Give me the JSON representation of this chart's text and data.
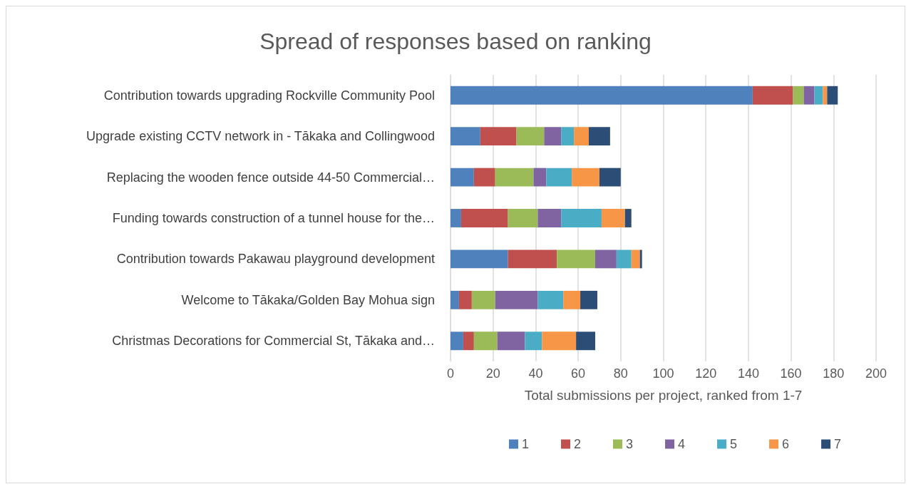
{
  "chart_data": {
    "type": "bar",
    "orientation": "horizontal",
    "stacked": true,
    "title": "Spread of responses based on ranking",
    "xlabel": "Total submissions per project, ranked from 1-7",
    "categories": [
      "Contribution towards upgrading Rockville Community Pool",
      "Upgrade existing CCTV network in - Tākaka and Collingwood",
      "Replacing the wooden fence outside 44-50 Commercial…",
      "Funding towards construction of a tunnel house for the…",
      "Contribution towards Pakawau playground development",
      "Welcome to Tākaka/Golden Bay Mohua sign",
      "Christmas Decorations for Commercial St, Tākaka and…"
    ],
    "series": [
      {
        "name": "1",
        "color": "#4f81bd",
        "values": [
          142,
          14,
          11,
          5,
          27,
          4,
          6
        ]
      },
      {
        "name": "2",
        "color": "#c0504d",
        "values": [
          19,
          17,
          10,
          22,
          23,
          6,
          5
        ]
      },
      {
        "name": "3",
        "color": "#9bbb59",
        "values": [
          5,
          13,
          18,
          14,
          18,
          11,
          11
        ]
      },
      {
        "name": "4",
        "color": "#8064a2",
        "values": [
          5,
          8,
          6,
          11,
          10,
          20,
          13
        ]
      },
      {
        "name": "5",
        "color": "#4bacc6",
        "values": [
          4,
          6,
          12,
          19,
          7,
          12,
          8
        ]
      },
      {
        "name": "6",
        "color": "#f79646",
        "values": [
          2,
          7,
          13,
          11,
          4,
          8,
          16
        ]
      },
      {
        "name": "7",
        "color": "#2c4d75",
        "values": [
          5,
          10,
          10,
          3,
          1,
          8,
          9
        ]
      }
    ],
    "xlim": [
      0,
      200
    ],
    "xticks": [
      0,
      20,
      40,
      60,
      80,
      100,
      120,
      140,
      160,
      180,
      200
    ],
    "grid": "x",
    "legend": "bottom"
  }
}
